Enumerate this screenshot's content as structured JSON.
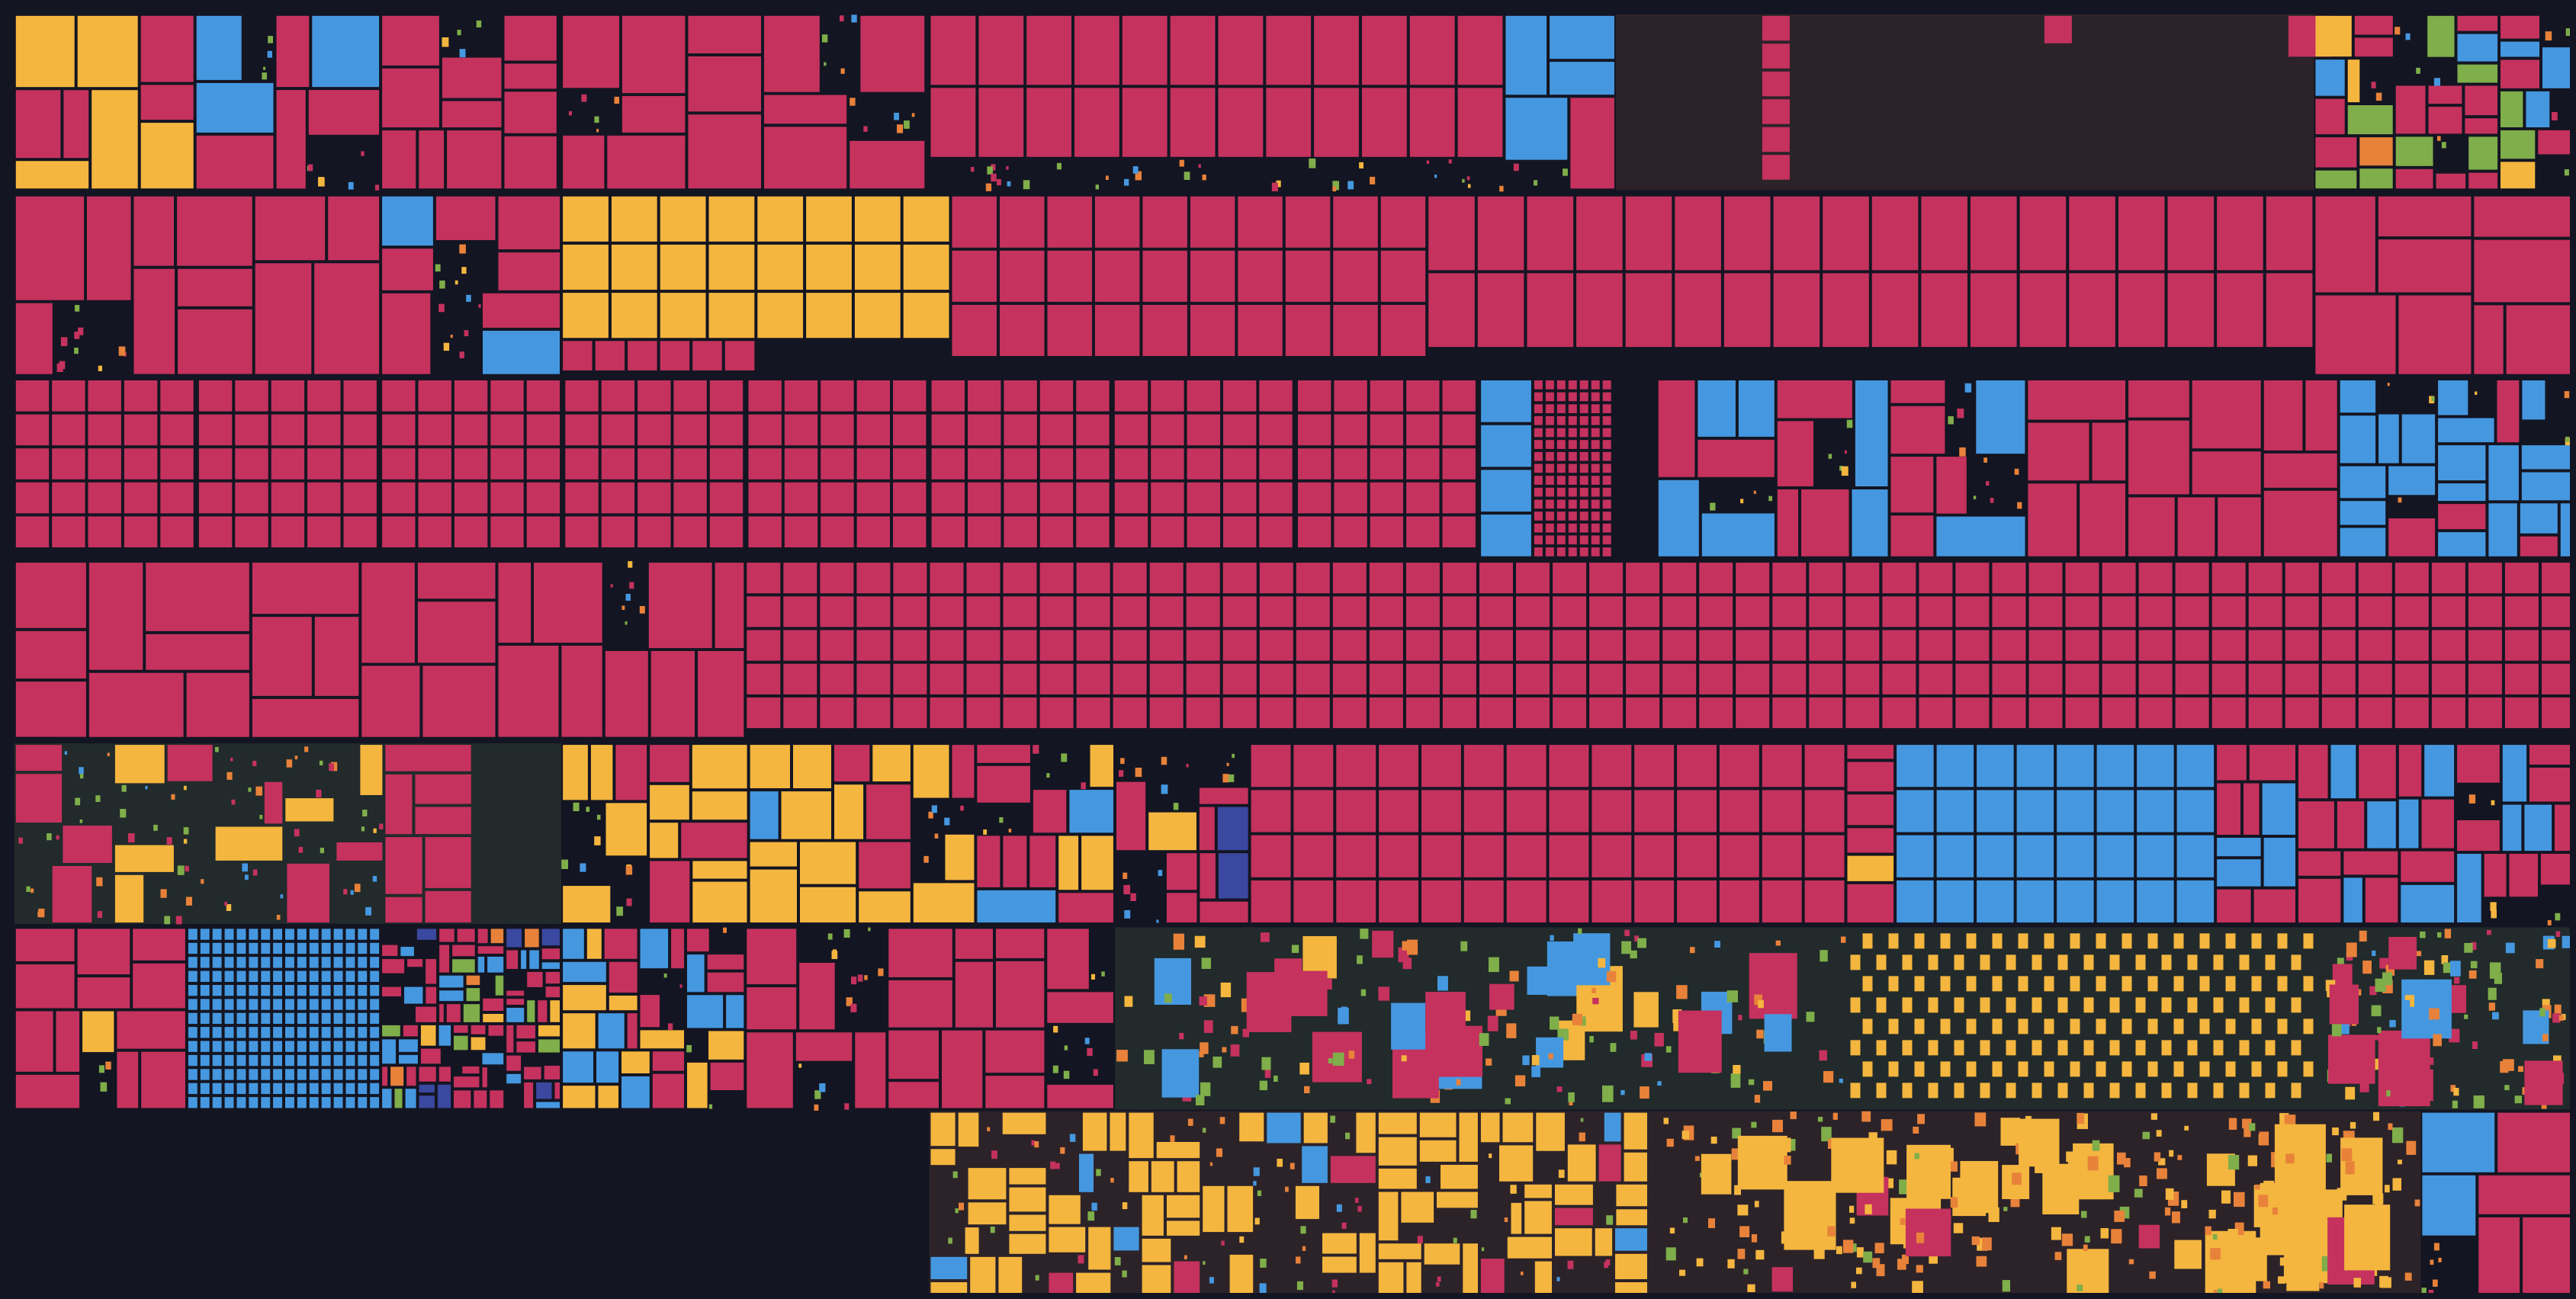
{
  "view": {
    "type": "treemap",
    "labels_shown": false
  },
  "palette": {
    "background": "#191a2b",
    "frame": "#141522",
    "region_dark_green": "#222a2b",
    "region_dark_brown": "#2c2329",
    "crimson": "#c5325e",
    "yellow": "#f4b63f",
    "blue": "#4598e0",
    "green": "#7fae4a",
    "orange": "#e8823a",
    "indigo": "#3a48a0"
  }
}
